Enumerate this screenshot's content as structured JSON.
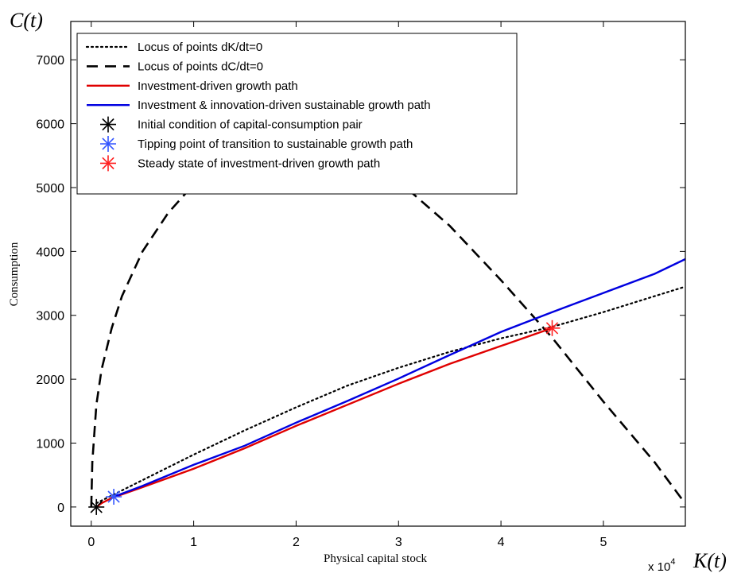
{
  "chart_data": {
    "type": "line",
    "corner_labels": {
      "y": "C(t)",
      "x": "K(t)"
    },
    "xlabel": "Physical capital stock",
    "ylabel": "Consumption",
    "x_exponent_label": "x 10",
    "x_exponent_power": "4",
    "xlim": [
      -0.2,
      5.8
    ],
    "ylim": [
      -300,
      7600
    ],
    "x_ticks": [
      0,
      1,
      2,
      3,
      4,
      5
    ],
    "x_tick_labels": [
      "0",
      "1",
      "2",
      "3",
      "4",
      "5"
    ],
    "y_ticks": [
      0,
      1000,
      2000,
      3000,
      4000,
      5000,
      6000,
      7000
    ],
    "y_tick_labels": [
      "0",
      "1000",
      "2000",
      "3000",
      "4000",
      "5000",
      "6000",
      "7000"
    ],
    "legend_position": "top-left",
    "series": [
      {
        "name": "Locus of points dK/dt=0",
        "style": "dotted",
        "color": "#000000",
        "x": [
          0.05,
          0.5,
          1.0,
          1.5,
          2.0,
          2.5,
          3.0,
          3.5,
          4.0,
          4.5,
          5.0,
          5.5,
          5.8
        ],
        "y": [
          60,
          420,
          820,
          1200,
          1560,
          1900,
          2180,
          2430,
          2640,
          2820,
          3050,
          3300,
          3450
        ]
      },
      {
        "name": "Locus of points dC/dt=0",
        "style": "dashed",
        "color": "#000000",
        "x": [
          0.0,
          0.01,
          0.05,
          0.1,
          0.2,
          0.3,
          0.5,
          0.75,
          1.0,
          1.5,
          2.0,
          2.5,
          3.0,
          3.5,
          4.0,
          4.5,
          5.0,
          5.5,
          5.8
        ],
        "y": [
          0,
          700,
          1600,
          2150,
          2800,
          3300,
          4000,
          4600,
          5050,
          5620,
          5900,
          5700,
          5100,
          4400,
          3550,
          2650,
          1650,
          700,
          50
        ]
      },
      {
        "name": "Investment-driven growth path",
        "style": "solid",
        "color": "#e00000",
        "x": [
          0.05,
          0.1,
          0.2,
          0.5,
          1.0,
          1.5,
          2.0,
          2.5,
          3.0,
          3.5,
          4.0,
          4.5
        ],
        "y": [
          0,
          60,
          140,
          310,
          600,
          920,
          1270,
          1600,
          1930,
          2240,
          2520,
          2800
        ]
      },
      {
        "name": "Investment & innovation-driven sustainable growth path",
        "style": "solid",
        "color": "#0000e0",
        "x": [
          0.22,
          0.5,
          1.0,
          1.5,
          2.0,
          2.5,
          3.0,
          3.5,
          4.0,
          4.5,
          5.0,
          5.5,
          5.8
        ],
        "y": [
          160,
          330,
          660,
          960,
          1320,
          1660,
          2010,
          2380,
          2740,
          3050,
          3350,
          3650,
          3880
        ]
      }
    ],
    "markers": [
      {
        "name": "Initial condition of capital-consumption pair",
        "color": "#000000",
        "x": 0.05,
        "y": 0
      },
      {
        "name": "Tipping point of transition to sustainable growth path",
        "color": "#3355ff",
        "x": 0.22,
        "y": 160
      },
      {
        "name": "Steady state of investment-driven growth path",
        "color": "#ff2020",
        "x": 4.5,
        "y": 2800
      }
    ]
  }
}
